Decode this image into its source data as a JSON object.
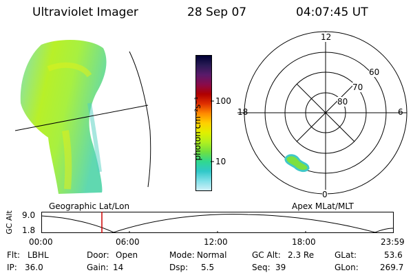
{
  "header": {
    "title": "Ultraviolet Imager",
    "date": "28 Sep 07",
    "time": "04:07:45 UT"
  },
  "colorbar": {
    "unit_label": "photon cm⁻²s⁻¹",
    "ticks": [
      "100",
      "10"
    ],
    "colors": [
      "#000033",
      "#2a1a55",
      "#5a1a6a",
      "#8a0a4a",
      "#b00000",
      "#e03000",
      "#ff8a00",
      "#ffd000",
      "#e0f000",
      "#b0f020",
      "#70e040",
      "#30d890",
      "#30c8c8",
      "#80e0e8",
      "#d0f0f8"
    ]
  },
  "polar_plot": {
    "mlt_labels": {
      "top": "12",
      "left": "18",
      "right": "6",
      "bottom": "0"
    },
    "lat_labels": [
      "60",
      "70",
      "80"
    ]
  },
  "timeline": {
    "ylabel": "GC Alt",
    "y_ticks": [
      "9.0",
      "1.8"
    ],
    "x_ticks": [
      "00:00",
      "06:00",
      "12:00",
      "18:00",
      "23:59"
    ],
    "left_title": "Geographic Lat/Lon",
    "right_title": "Apex MLat/MLT",
    "marker_color": "#cc0000"
  },
  "info": {
    "flt": {
      "label": "Flt:",
      "value": "LBHL"
    },
    "ip": {
      "label": "IP:",
      "value": "36.0"
    },
    "door": {
      "label": "Door:",
      "value": "Open"
    },
    "gain": {
      "label": "Gain:",
      "value": "14"
    },
    "mode": {
      "label": "Mode:",
      "value": "Normal"
    },
    "dsp": {
      "label": "Dsp:",
      "value": "5.5"
    },
    "gcalt": {
      "label": "GC Alt:",
      "value": "2.3 Re"
    },
    "seq": {
      "label": "Seq:",
      "value": "39"
    },
    "glat": {
      "label": "GLat:",
      "value": "53.6"
    },
    "glon": {
      "label": "GLon:",
      "value": "269.7"
    }
  }
}
